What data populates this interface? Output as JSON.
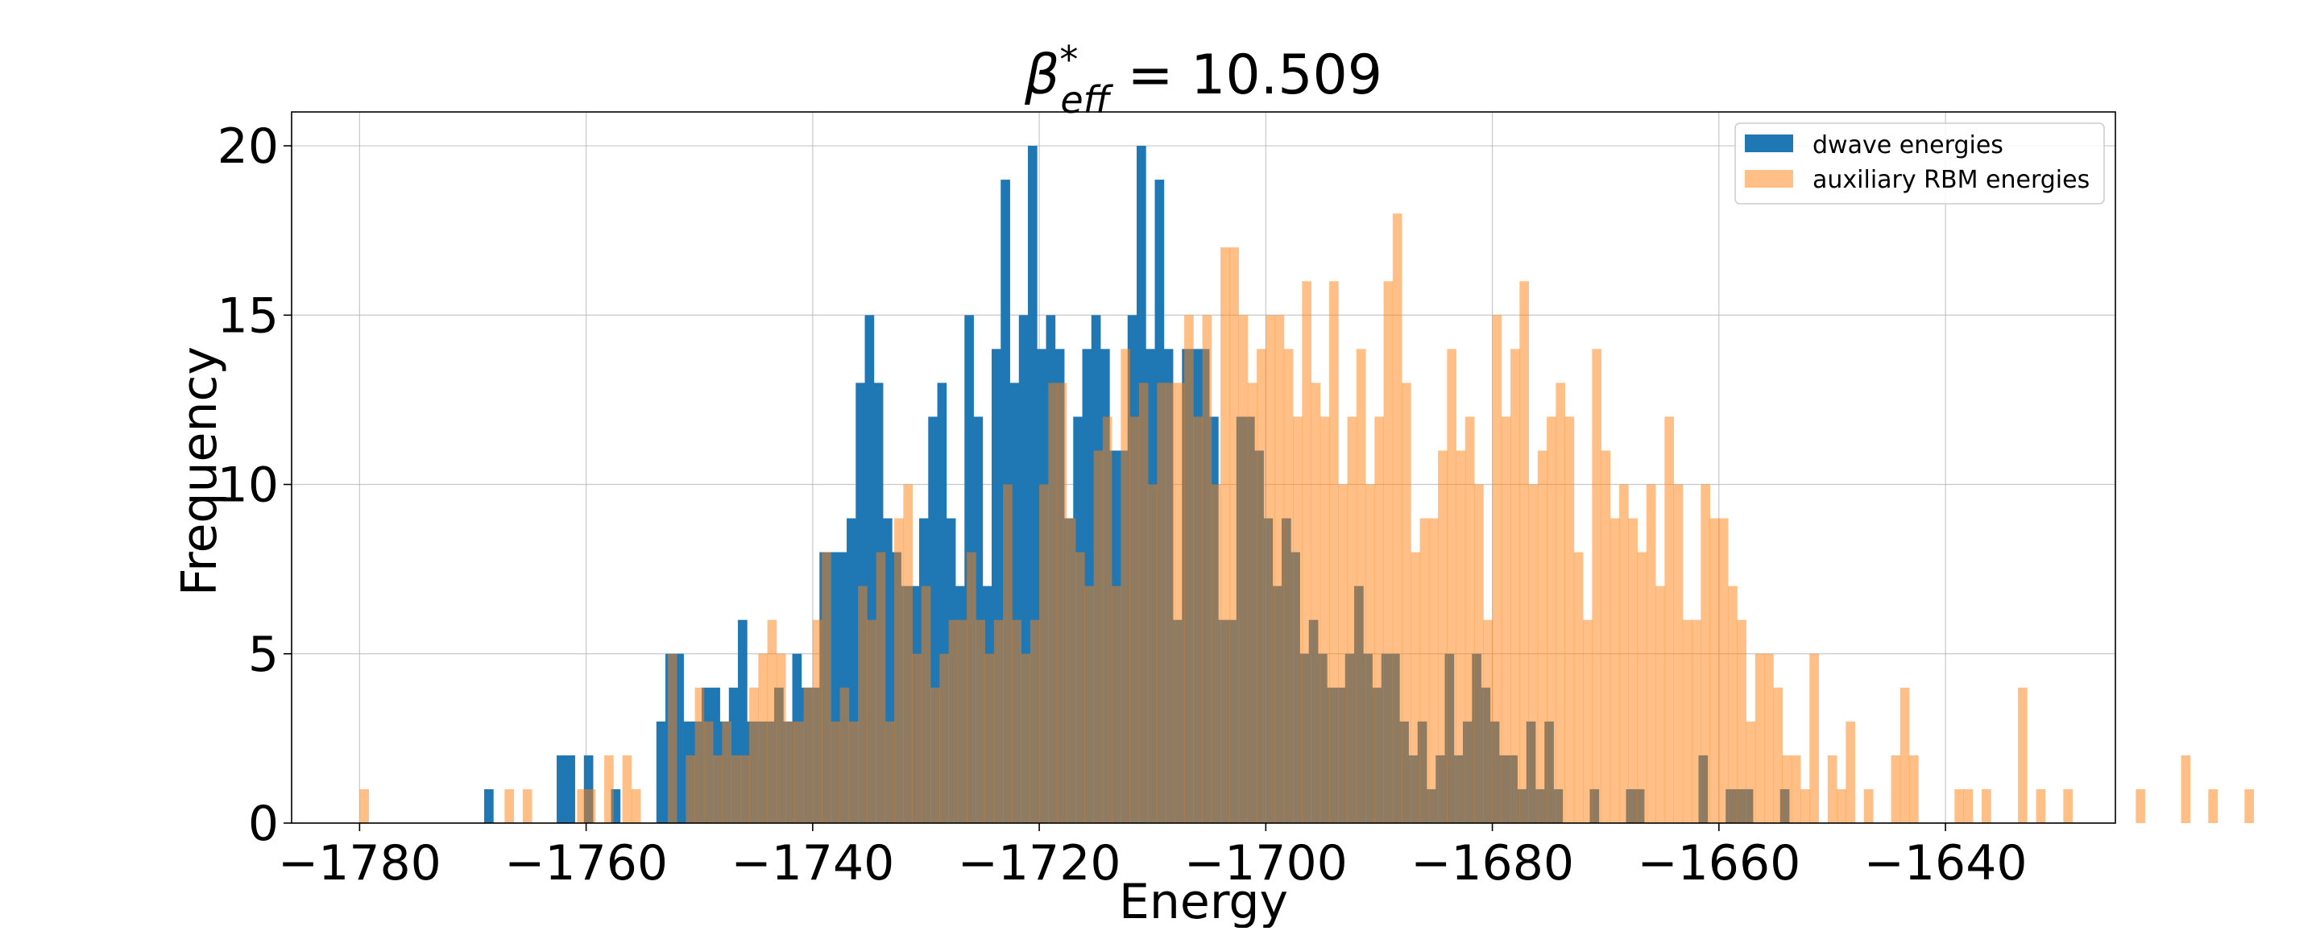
{
  "chart_data": {
    "type": "histogram",
    "title_main": "β",
    "title_sup": "*",
    "title_sub": "eff",
    "title_value": " = 10.509",
    "xlabel": "Energy",
    "ylabel": "Frequency",
    "xlim": [
      -1786,
      -1625
    ],
    "ylim": [
      0,
      21
    ],
    "xticks": [
      -1780,
      -1760,
      -1740,
      -1720,
      -1700,
      -1680,
      -1660,
      -1640
    ],
    "xtick_labels": [
      "−1780",
      "−1760",
      "−1740",
      "−1720",
      "−1700",
      "−1680",
      "−1660",
      "−1640"
    ],
    "yticks": [
      0,
      5,
      10,
      15,
      20
    ],
    "ytick_labels": [
      "0",
      "5",
      "10",
      "15",
      "20"
    ],
    "grid": true,
    "legend_position": "top-right",
    "bin_width": 0.8,
    "series": [
      {
        "name": "dwave energies",
        "color": "#1f77b4",
        "opacity": 1,
        "x_start": -1769.0,
        "counts": [
          1,
          0,
          0,
          0,
          0,
          0,
          0,
          0,
          2,
          2,
          0,
          2,
          0,
          0,
          1,
          0,
          0,
          0,
          0,
          3,
          5,
          5,
          3,
          3,
          4,
          4,
          3,
          4,
          6,
          3,
          3,
          3,
          4,
          3,
          5,
          4,
          4,
          8,
          8,
          8,
          9,
          13,
          15,
          13,
          9,
          8,
          7,
          7,
          9,
          12,
          13,
          9,
          7,
          15,
          12,
          7,
          14,
          19,
          13,
          15,
          20,
          14,
          15,
          14,
          9,
          12,
          14,
          15,
          14,
          11,
          11,
          15,
          20,
          14,
          19,
          14,
          6,
          14,
          14,
          14,
          12,
          6,
          6,
          12,
          12,
          11,
          9,
          7,
          9,
          8,
          5,
          6,
          5,
          4,
          4,
          5,
          7,
          5,
          4,
          5,
          5,
          3,
          2,
          3,
          1,
          2,
          5,
          2,
          3,
          5,
          4,
          3,
          2,
          2,
          1,
          3,
          1,
          3,
          1,
          0,
          0,
          0,
          1,
          0,
          0,
          0,
          1,
          1,
          0,
          0,
          0,
          0,
          0,
          0,
          2,
          0,
          0,
          1,
          1,
          1,
          0,
          0,
          0,
          1
        ],
        "decorative_bars": []
      },
      {
        "name": "auxiliary RBM energies",
        "color": "#ff7f0e",
        "opacity": 0.5,
        "x_start": -1780.0,
        "counts": [
          1,
          0,
          0,
          0,
          0,
          0,
          0,
          0,
          0,
          0,
          0,
          0,
          0,
          0,
          0,
          0,
          1,
          0,
          1,
          0,
          0,
          0,
          0,
          0,
          1,
          1,
          0,
          2,
          0,
          2,
          1,
          0,
          0,
          0,
          5,
          0,
          2,
          4,
          3,
          2,
          3,
          2,
          2,
          4,
          5,
          6,
          5,
          3,
          3,
          4,
          6,
          8,
          3,
          4,
          3,
          7,
          6,
          8,
          3,
          9,
          10,
          5,
          7,
          4,
          5,
          6,
          6,
          8,
          6,
          5,
          6,
          10,
          6,
          5,
          6,
          10,
          13,
          13,
          9,
          8,
          7,
          11,
          12,
          7,
          14,
          12,
          13,
          10,
          13,
          13,
          13,
          15,
          12,
          15,
          10,
          17,
          17,
          15,
          13,
          14,
          15,
          15,
          14,
          12,
          16,
          13,
          12,
          16,
          10,
          12,
          14,
          10,
          12,
          16,
          18,
          13,
          8,
          9,
          9,
          11,
          14,
          11,
          12,
          10,
          6,
          15,
          12,
          14,
          16,
          10,
          11,
          12,
          13,
          12,
          8,
          6,
          14,
          11,
          9,
          10,
          9,
          8,
          10,
          7,
          12,
          10,
          6,
          6,
          10,
          9,
          9,
          7,
          6,
          3,
          5,
          5,
          4,
          2,
          2,
          1,
          5,
          0,
          2,
          1,
          3,
          0,
          1,
          0,
          0,
          2,
          4,
          2,
          0,
          0,
          0,
          0,
          1,
          1,
          0,
          1,
          0,
          0,
          0,
          4,
          0,
          1,
          0,
          0,
          1,
          0,
          0,
          0,
          0,
          0,
          0,
          0,
          1,
          0,
          0,
          0,
          0,
          2,
          0,
          0,
          1,
          0,
          0,
          0,
          1,
          0,
          0,
          0,
          0,
          0,
          0,
          0,
          0,
          0,
          0,
          0,
          0,
          0,
          0,
          0,
          0
        ]
      }
    ]
  }
}
